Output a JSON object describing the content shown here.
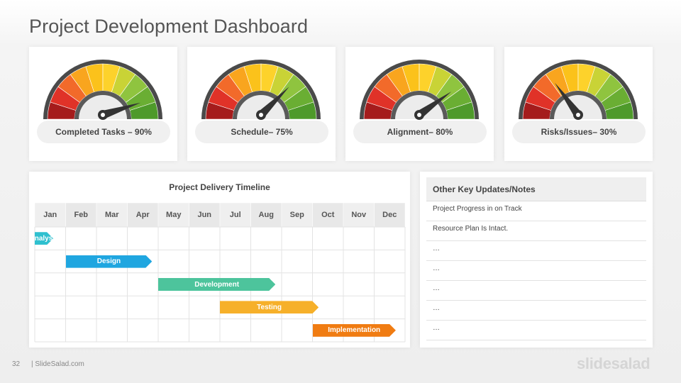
{
  "title": "Project Development Dashboard",
  "gauges": [
    {
      "label": "Completed Tasks – 90%",
      "value": 90
    },
    {
      "label": "Schedule–  75%",
      "value": 75
    },
    {
      "label": "Alignment–  80%",
      "value": 80
    },
    {
      "label": "Risks/Issues– 30%",
      "value": 30
    }
  ],
  "gauge_colors": [
    "#a51c1c",
    "#e03228",
    "#f26a2a",
    "#f9a51e",
    "#fbc21b",
    "#fdd22b",
    "#c9d336",
    "#8fc43f",
    "#6aae33",
    "#4e9a2a"
  ],
  "timeline": {
    "title": "Project Delivery Timeline",
    "months": [
      "Jan",
      "Feb",
      "Mar",
      "Apr",
      "May",
      "Jun",
      "Jul",
      "Aug",
      "Sep",
      "Oct",
      "Nov",
      "Dec"
    ],
    "tasks": [
      {
        "name": "Analysis",
        "start_month": 1,
        "end_month": 1.6,
        "color": "#2fc0cf"
      },
      {
        "name": "Design",
        "start_month": 2,
        "end_month": 4.8,
        "color": "#1fa6e0"
      },
      {
        "name": "Development",
        "start_month": 5,
        "end_month": 8.8,
        "color": "#4dc49c"
      },
      {
        "name": "Testing",
        "start_month": 7,
        "end_month": 10.2,
        "color": "#f6b02a"
      },
      {
        "name": "Implementation",
        "start_month": 10,
        "end_month": 12.7,
        "color": "#f07c12"
      }
    ]
  },
  "notes": {
    "header": "Other Key Updates/Notes",
    "items": [
      "Project Progress in on Track",
      "Resource Plan Is Intact.",
      "…",
      "…",
      "…",
      "…",
      "…"
    ]
  },
  "footer": {
    "page_number": "32",
    "brand": "| SlideSalad.com",
    "logo": "slidesalad"
  }
}
